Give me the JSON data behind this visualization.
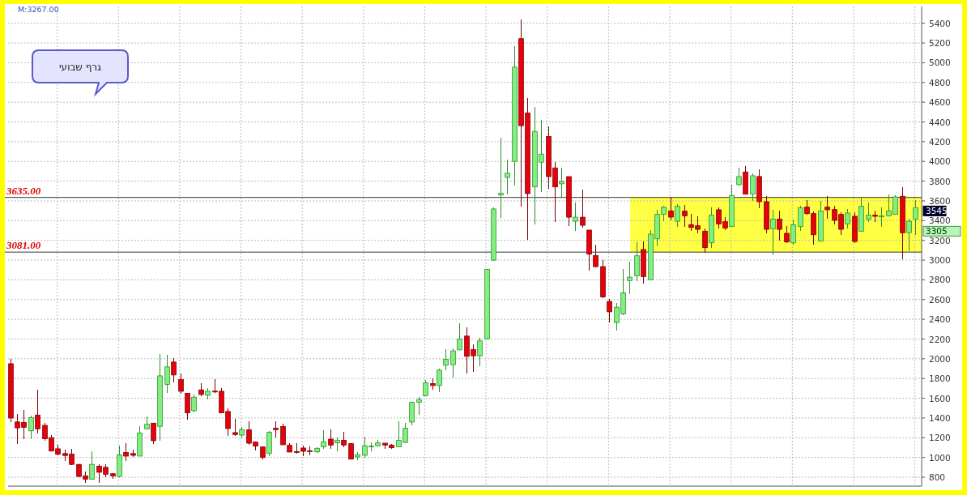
{
  "chart_data": {
    "type": "candlestick",
    "categories": [
      null,
      null,
      null,
      null,
      null,
      null,
      null,
      null,
      null,
      null,
      null,
      null,
      null,
      null,
      null,
      null,
      null,
      null,
      null,
      null,
      null,
      null,
      null,
      null,
      null,
      null,
      null,
      null,
      null,
      null,
      null,
      null,
      null,
      null,
      null,
      null,
      null,
      null,
      null,
      null,
      null,
      null,
      null,
      null,
      null,
      null,
      null,
      null,
      null,
      null,
      null,
      null,
      null,
      null,
      null,
      null,
      null,
      null,
      null,
      null,
      null,
      null,
      null,
      null,
      null,
      null,
      null,
      null,
      null,
      null,
      null,
      null,
      null,
      null,
      null,
      null,
      null,
      null,
      null,
      null,
      null,
      null,
      null,
      null,
      null,
      null,
      null,
      null,
      null,
      null,
      null,
      null,
      null,
      null,
      null,
      null,
      null,
      null,
      null,
      null,
      null,
      null,
      null,
      null,
      null,
      null,
      null,
      null,
      null,
      null,
      null,
      null,
      null,
      null,
      null,
      null,
      null,
      null,
      null,
      null,
      null,
      null,
      null,
      null,
      null,
      null,
      null,
      null,
      null,
      null,
      null,
      null,
      null,
      null
    ],
    "ohlc": [
      [
        1950,
        1995,
        1360,
        1400
      ],
      [
        1360,
        1440,
        1145,
        1300
      ],
      [
        1355,
        1475,
        1190,
        1305
      ],
      [
        1270,
        1420,
        1190,
        1405
      ],
      [
        1430,
        1680,
        1245,
        1290
      ],
      [
        1325,
        1345,
        1170,
        1190
      ],
      [
        1200,
        1220,
        1065,
        1065
      ],
      [
        1088,
        1125,
        1027,
        1033
      ],
      [
        1040,
        1074,
        965,
        1020
      ],
      [
        1035,
        1082,
        930,
        930
      ],
      [
        930,
        930,
        803,
        808
      ],
      [
        813,
        850,
        745,
        780
      ],
      [
        780,
        1060,
        780,
        930
      ],
      [
        912,
        930,
        745,
        850
      ],
      [
        900,
        925,
        808,
        830
      ],
      [
        835,
        840,
        790,
        813
      ],
      [
        808,
        1115,
        808,
        1027
      ],
      [
        1050,
        1142,
        965,
        1014
      ],
      [
        1040,
        1074,
        1008,
        1022
      ],
      [
        1014,
        1310,
        1014,
        1247
      ],
      [
        1288,
        1410,
        1288,
        1337
      ],
      [
        1348,
        1348,
        1145,
        1170
      ],
      [
        1316,
        2040,
        1170,
        1827
      ],
      [
        1740,
        2035,
        1657,
        1918
      ],
      [
        1967,
        2005,
        1767,
        1836
      ],
      [
        1789,
        1844,
        1650,
        1671
      ],
      [
        1650,
        1650,
        1389,
        1452
      ],
      [
        1474,
        1630,
        1458,
        1611
      ],
      [
        1685,
        1745,
        1625,
        1638
      ],
      [
        1630,
        1700,
        1595,
        1671
      ],
      [
        1672,
        1789,
        1657,
        1665
      ],
      [
        1671,
        1700,
        1452,
        1452
      ],
      [
        1466,
        1493,
        1227,
        1293
      ],
      [
        1252,
        1384,
        1219,
        1233
      ],
      [
        1227,
        1307,
        1208,
        1280
      ],
      [
        1280,
        1362,
        1129,
        1145
      ],
      [
        1156,
        1156,
        1074,
        1115
      ],
      [
        1107,
        1107,
        986,
        1000
      ],
      [
        1041,
        1266,
        1014,
        1255
      ],
      [
        1296,
        1362,
        1208,
        1282
      ],
      [
        1315,
        1337,
        1129,
        1129
      ],
      [
        1123,
        1137,
        1055,
        1055
      ],
      [
        1060,
        1137,
        1046,
        1052
      ],
      [
        1096,
        1115,
        1019,
        1063
      ],
      [
        1068,
        1110,
        1027,
        1060
      ],
      [
        1057,
        1100,
        1050,
        1093
      ],
      [
        1107,
        1271,
        1093,
        1159
      ],
      [
        1186,
        1277,
        1093,
        1126
      ],
      [
        1148,
        1200,
        1071,
        1175
      ],
      [
        1175,
        1255,
        1107,
        1126
      ],
      [
        1140,
        1140,
        983,
        983
      ],
      [
        1005,
        1052,
        975,
        1027
      ],
      [
        1022,
        1208,
        1003,
        1118
      ],
      [
        1110,
        1153,
        1071,
        1115
      ],
      [
        1118,
        1173,
        1118,
        1148
      ],
      [
        1145,
        1145,
        1093,
        1126
      ],
      [
        1126,
        1130,
        1093,
        1099
      ],
      [
        1107,
        1364,
        1107,
        1173
      ],
      [
        1153,
        1350,
        1153,
        1296
      ],
      [
        1359,
        1559,
        1331,
        1559
      ],
      [
        1559,
        1605,
        1433,
        1586
      ],
      [
        1625,
        1778,
        1625,
        1756
      ],
      [
        1748,
        1797,
        1688,
        1729
      ],
      [
        1729,
        1899,
        1666,
        1885
      ],
      [
        1934,
        2093,
        1888,
        1994
      ],
      [
        1940,
        2099,
        1811,
        2080
      ],
      [
        2090,
        2359,
        2090,
        2200
      ],
      [
        2230,
        2318,
        1852,
        2025
      ],
      [
        2093,
        2140,
        1874,
        2030
      ],
      [
        2030,
        2208,
        1926,
        2181
      ],
      [
        2202,
        2907,
        2202,
        2907
      ],
      [
        3000,
        3531,
        3000,
        3518
      ],
      [
        3660,
        4235,
        3435,
        3676
      ],
      [
        3838,
        4011,
        3668,
        3880
      ],
      [
        4000,
        5162,
        3756,
        4956
      ],
      [
        5244,
        5436,
        3545,
        4362
      ],
      [
        4490,
        4641,
        3208,
        3674
      ],
      [
        3742,
        4545,
        3367,
        4304
      ],
      [
        3992,
        4414,
        3696,
        4074
      ],
      [
        4252,
        4348,
        3723,
        3846
      ],
      [
        3934,
        3989,
        3389,
        3742
      ],
      [
        3773,
        3929,
        3646,
        3797
      ],
      [
        3846,
        3846,
        3353,
        3435
      ],
      [
        3394,
        3578,
        3299,
        3435
      ],
      [
        3435,
        3709,
        3334,
        3353
      ],
      [
        3304,
        3304,
        2901,
        3060
      ],
      [
        3046,
        3153,
        2934,
        2934
      ],
      [
        2934,
        2997,
        2622,
        2627
      ],
      [
        2581,
        2600,
        2375,
        2476
      ],
      [
        2367,
        2559,
        2293,
        2523
      ],
      [
        2455,
        2907,
        2449,
        2668
      ],
      [
        2792,
        2983,
        2663,
        2827
      ],
      [
        2841,
        3175,
        2792,
        3044
      ],
      [
        3107,
        3184,
        2770,
        2833
      ],
      [
        2800,
        3299,
        2800,
        3263
      ],
      [
        3216,
        3504,
        3142,
        3463
      ],
      [
        3463,
        3545,
        3400,
        3537
      ],
      [
        3499,
        3636,
        3408,
        3436
      ],
      [
        3394,
        3564,
        3345,
        3545
      ],
      [
        3496,
        3551,
        3340,
        3449
      ],
      [
        3359,
        3463,
        3299,
        3331
      ],
      [
        3348,
        3441,
        3279,
        3312
      ],
      [
        3293,
        3318,
        3079,
        3126
      ],
      [
        3175,
        3526,
        3126,
        3455
      ],
      [
        3510,
        3531,
        3326,
        3367
      ],
      [
        3389,
        3435,
        3312,
        3326
      ],
      [
        3340,
        3756,
        3340,
        3655
      ],
      [
        3764,
        3929,
        3756,
        3846
      ],
      [
        3893,
        3948,
        3668,
        3668
      ],
      [
        3668,
        3874,
        3600,
        3855
      ],
      [
        3847,
        3915,
        3531,
        3592
      ],
      [
        3592,
        3641,
        3279,
        3312
      ],
      [
        3318,
        3504,
        3052,
        3416
      ],
      [
        3416,
        3496,
        3203,
        3312
      ],
      [
        3271,
        3345,
        3175,
        3184
      ],
      [
        3175,
        3408,
        3162,
        3359
      ],
      [
        3340,
        3545,
        3299,
        3531
      ],
      [
        3537,
        3600,
        3463,
        3471
      ],
      [
        3471,
        3490,
        3162,
        3257
      ],
      [
        3192,
        3592,
        3192,
        3499
      ],
      [
        3537,
        3641,
        3422,
        3510
      ],
      [
        3512,
        3545,
        3367,
        3403
      ],
      [
        3463,
        3477,
        3263,
        3312
      ],
      [
        3367,
        3510,
        3326,
        3477
      ],
      [
        3444,
        3477,
        3181,
        3189
      ],
      [
        3293,
        3633,
        3293,
        3545
      ],
      [
        3416,
        3581,
        3389,
        3455
      ],
      [
        3455,
        3499,
        3389,
        3444
      ],
      [
        3438,
        3531,
        3340,
        3449
      ],
      [
        3449,
        3663,
        3449,
        3499
      ],
      [
        3463,
        3655,
        3463,
        3641
      ],
      [
        3647,
        3737,
        3011,
        3277
      ],
      [
        3279,
        3416,
        3093,
        3394
      ],
      [
        3414,
        3600,
        3257,
        3531
      ]
    ],
    "ylim": [
      710,
      5570
    ],
    "yticks": [
      800,
      1000,
      1200,
      1400,
      1600,
      1800,
      2000,
      2200,
      2400,
      2600,
      2800,
      3000,
      3200,
      3400,
      3600,
      3800,
      4000,
      4200,
      4400,
      4600,
      4800,
      5000,
      5200,
      5400
    ],
    "grid": true,
    "ref_lines": [
      {
        "axis": "y",
        "value": 3635,
        "label": "3635.00",
        "color": "#333333"
      },
      {
        "axis": "y",
        "value": 3081,
        "label": "3081.00",
        "color": "#333333"
      }
    ],
    "bands": [
      {
        "axis": "y",
        "from": 3081,
        "to": 3635,
        "color": "#ffff44"
      }
    ],
    "annotations": [
      "M:3267.00",
      "גרף שבועי",
      "3545",
      "3305"
    ]
  }
}
